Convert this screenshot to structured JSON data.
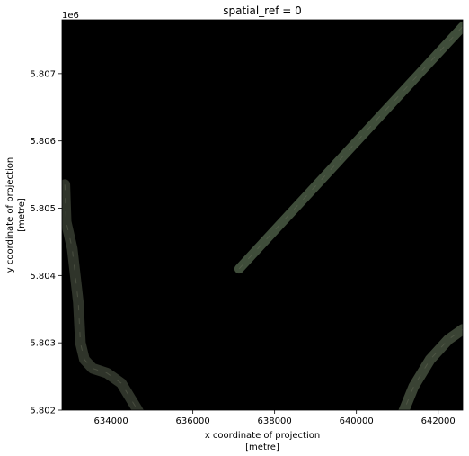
{
  "chart_data": {
    "type": "image",
    "title": "spatial_ref = 0",
    "xlabel_line1": "x coordinate of projection",
    "xlabel_line2": "[metre]",
    "ylabel_line1": "y coordinate of projection",
    "ylabel_line2": "[metre]",
    "y_offset_label": "1e6",
    "xlim": [
      632800,
      642600
    ],
    "ylim": [
      5.802,
      5.8078
    ],
    "x_ticks": [
      634000,
      636000,
      638000,
      640000,
      642000
    ],
    "x_tick_labels": [
      "634000",
      "636000",
      "638000",
      "640000",
      "642000"
    ],
    "y_ticks": [
      5.802,
      5.803,
      5.804,
      5.805,
      5.806,
      5.807
    ],
    "y_tick_labels": [
      "5.802",
      "5.803",
      "5.804",
      "5.805",
      "5.806",
      "5.807"
    ],
    "background_color": "#000000",
    "features": [
      {
        "name": "diagonal-strip",
        "color": "#3f4d3a",
        "width_m": 230,
        "points": [
          [
            637130,
            5.8041
          ],
          [
            642600,
            5.8077
          ]
        ]
      },
      {
        "name": "left-road-strip",
        "color": "#2f342a",
        "width_m": 260,
        "points": [
          [
            632870,
            5.80535
          ],
          [
            632900,
            5.8048
          ],
          [
            633050,
            5.8044
          ],
          [
            633200,
            5.8036
          ],
          [
            633250,
            5.803
          ],
          [
            633350,
            5.80275
          ],
          [
            633550,
            5.80262
          ],
          [
            633900,
            5.80255
          ],
          [
            634250,
            5.8024
          ],
          [
            634650,
            5.802
          ],
          [
            635100,
            5.8015
          ]
        ]
      },
      {
        "name": "right-bottom-strip",
        "color": "#3a4334",
        "width_m": 260,
        "points": [
          [
            641100,
            5.8019
          ],
          [
            641400,
            5.80235
          ],
          [
            641800,
            5.80275
          ],
          [
            642250,
            5.80305
          ],
          [
            642600,
            5.8032
          ]
        ]
      }
    ]
  }
}
